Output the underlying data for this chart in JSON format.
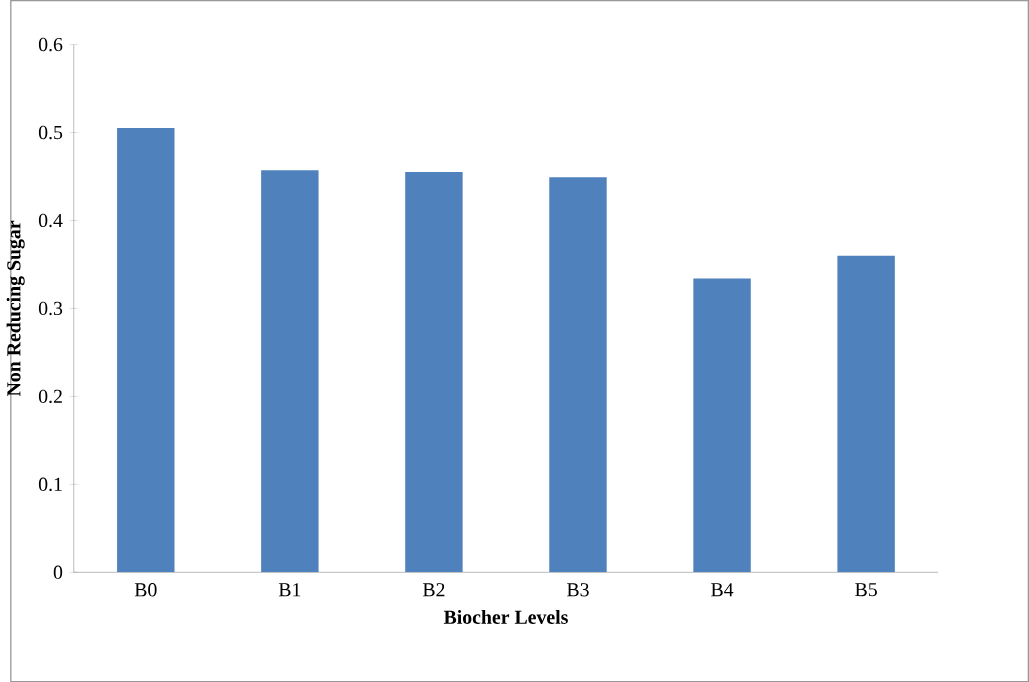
{
  "chart_data": {
    "type": "bar",
    "xlabel": "Biocher Levels",
    "ylabel": "Non Reducing Sugar",
    "categories": [
      "B0",
      "B1",
      "B2",
      "B3",
      "B4",
      "B5"
    ],
    "values": [
      0.505,
      0.457,
      0.455,
      0.449,
      0.334,
      0.36
    ],
    "color": "#4f81bd",
    "ylim": [
      0,
      0.6
    ],
    "yticks": [
      0,
      0.1,
      0.2,
      0.3,
      0.4,
      0.5,
      0.6
    ]
  }
}
